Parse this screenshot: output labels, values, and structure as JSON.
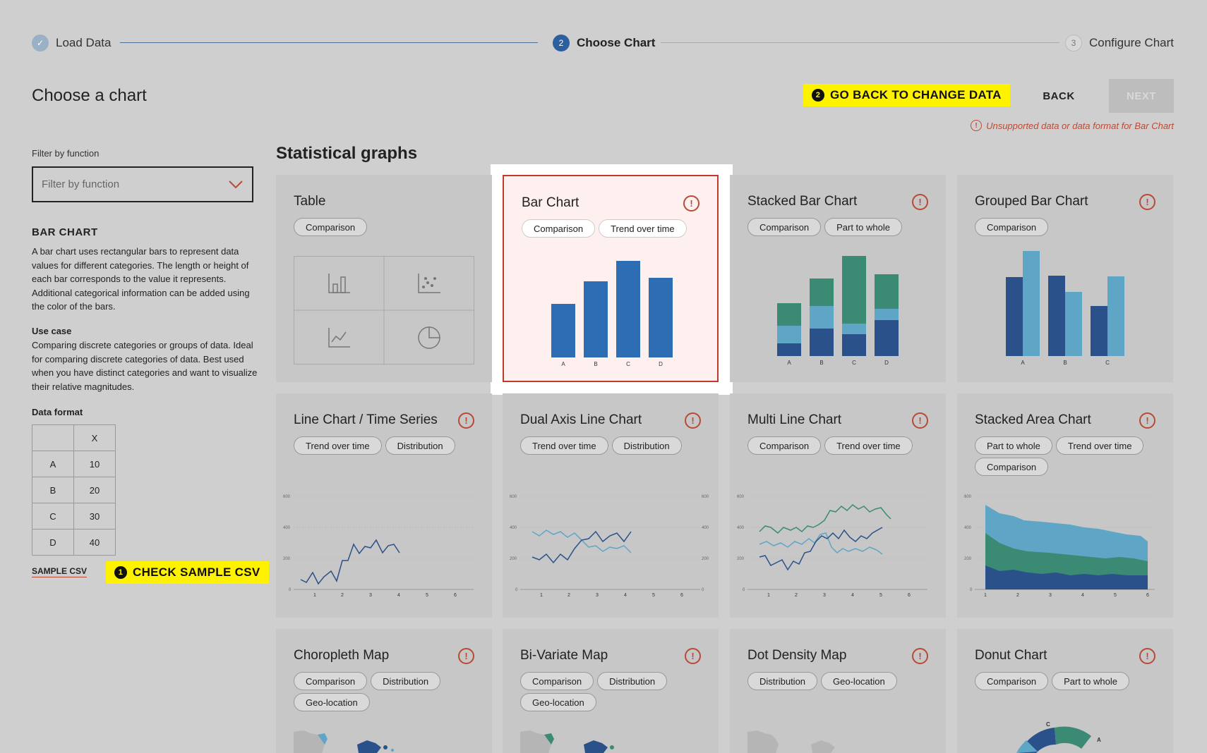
{
  "stepper": {
    "steps": [
      {
        "label": "Load Data",
        "marker": "✓"
      },
      {
        "label": "Choose Chart",
        "marker": "2"
      },
      {
        "label": "Configure Chart",
        "marker": "3"
      }
    ]
  },
  "header": {
    "title": "Choose a chart",
    "tip_back": {
      "num": "2",
      "text": "GO BACK TO CHANGE DATA"
    },
    "back_label": "BACK",
    "next_label": "NEXT",
    "warning": "Unsupported data or data format for Bar Chart"
  },
  "sidebar": {
    "filter_label": "Filter by function",
    "filter_placeholder": "Filter by function",
    "chart_title": "BAR CHART",
    "description": "A bar chart uses rectangular bars to represent data values for different categories. The length or height of each bar corresponds to the value it represents. Additional categorical information can be added using the color of the bars.",
    "use_case_title": "Use case",
    "use_case": "Comparing discrete categories or groups of data. Ideal for comparing discrete categories of data. Best used when you have distinct categories and want to visualize their relative magnitudes.",
    "data_format_title": "Data format",
    "table": {
      "header": [
        "",
        "X"
      ],
      "rows": [
        [
          "A",
          "10"
        ],
        [
          "B",
          "20"
        ],
        [
          "C",
          "30"
        ],
        [
          "D",
          "40"
        ]
      ]
    },
    "sample_csv": "SAMPLE CSV",
    "tip_csv": {
      "num": "1",
      "text": "CHECK SAMPLE CSV"
    }
  },
  "section_title": "Statistical graphs",
  "cards": [
    {
      "title": "Table",
      "tags": [
        "Comparison"
      ]
    },
    {
      "title": "Bar Chart",
      "tags": [
        "Comparison",
        "Trend over time"
      ]
    },
    {
      "title": "Stacked Bar Chart",
      "tags": [
        "Comparison",
        "Part to whole"
      ]
    },
    {
      "title": "Grouped Bar Chart",
      "tags": [
        "Comparison"
      ]
    },
    {
      "title": "Line Chart / Time Series",
      "tags": [
        "Trend over time",
        "Distribution"
      ]
    },
    {
      "title": "Dual Axis Line Chart",
      "tags": [
        "Trend over time",
        "Distribution"
      ]
    },
    {
      "title": "Multi Line Chart",
      "tags": [
        "Comparison",
        "Trend over time"
      ]
    },
    {
      "title": "Stacked Area Chart",
      "tags": [
        "Part to whole",
        "Trend over time",
        "Comparison"
      ]
    },
    {
      "title": "Choropleth Map",
      "tags": [
        "Comparison",
        "Distribution",
        "Geo-location"
      ]
    },
    {
      "title": "Bi-Variate Map",
      "tags": [
        "Comparison",
        "Distribution",
        "Geo-location"
      ]
    },
    {
      "title": "Dot Density Map",
      "tags": [
        "Distribution",
        "Geo-location"
      ]
    },
    {
      "title": "Donut Chart",
      "tags": [
        "Comparison",
        "Part to whole"
      ]
    }
  ],
  "thumb": {
    "bar_categories": [
      "A",
      "B",
      "C",
      "D"
    ],
    "grouped_categories": [
      "A",
      "B",
      "C"
    ],
    "line_x_ticks": [
      "1",
      "2",
      "3",
      "4",
      "5",
      "6"
    ],
    "line_y_ticks": [
      "0",
      "200",
      "400",
      "600"
    ],
    "donut_labels": [
      "C",
      "A"
    ]
  },
  "colors": {
    "dark_blue": "#2a5189",
    "mid_blue": "#2d6db3",
    "light_blue": "#5fa6c6",
    "green": "#3b8a73",
    "accent_red": "#b84a35",
    "highlight_yellow": "#fff200"
  }
}
